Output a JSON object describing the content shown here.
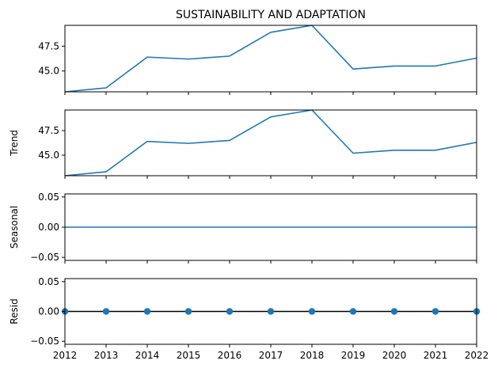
{
  "title": "SUSTAINABILITY AND ADAPTATION",
  "colors": {
    "line": "#1f77b4",
    "resid_marker": "#1f77b4",
    "zero_line": "#000000",
    "axis": "#000000"
  },
  "chart_data": [
    {
      "type": "line",
      "title": "SUSTAINABILITY AND ADAPTATION",
      "ylabel": "",
      "x": [
        2012,
        2013,
        2014,
        2015,
        2016,
        2017,
        2018,
        2019,
        2020,
        2021,
        2022
      ],
      "values": [
        42.9,
        43.3,
        46.4,
        46.2,
        46.5,
        48.9,
        49.6,
        45.2,
        45.5,
        45.5,
        46.3
      ],
      "ylim": [
        42.9,
        49.6
      ],
      "yticks": [
        45.0,
        47.5
      ],
      "ytick_labels": [
        "45.0",
        "47.5"
      ],
      "xtick_labels_visible": false
    },
    {
      "type": "line",
      "title": "",
      "ylabel": "Trend",
      "x": [
        2012,
        2013,
        2014,
        2015,
        2016,
        2017,
        2018,
        2019,
        2020,
        2021,
        2022
      ],
      "values": [
        42.9,
        43.3,
        46.4,
        46.2,
        46.5,
        48.9,
        49.6,
        45.2,
        45.5,
        45.5,
        46.3
      ],
      "ylim": [
        42.9,
        49.6
      ],
      "yticks": [
        45.0,
        47.5
      ],
      "ytick_labels": [
        "45.0",
        "47.5"
      ],
      "xtick_labels_visible": false
    },
    {
      "type": "line",
      "title": "",
      "ylabel": "Seasonal",
      "x": [
        2012,
        2013,
        2014,
        2015,
        2016,
        2017,
        2018,
        2019,
        2020,
        2021,
        2022
      ],
      "values": [
        0,
        0,
        0,
        0,
        0,
        0,
        0,
        0,
        0,
        0,
        0
      ],
      "ylim": [
        -0.055,
        0.055
      ],
      "yticks": [
        -0.05,
        0.0,
        0.05
      ],
      "ytick_labels": [
        "−0.05",
        "0.00",
        "0.05"
      ],
      "xtick_labels_visible": false
    },
    {
      "type": "scatter",
      "title": "",
      "ylabel": "Resid",
      "x": [
        2012,
        2013,
        2014,
        2015,
        2016,
        2017,
        2018,
        2019,
        2020,
        2021,
        2022
      ],
      "values": [
        0,
        0,
        0,
        0,
        0,
        0,
        0,
        0,
        0,
        0,
        0
      ],
      "ylim": [
        -0.055,
        0.055
      ],
      "yticks": [
        -0.05,
        0.0,
        0.05
      ],
      "ytick_labels": [
        "−0.05",
        "0.00",
        "0.05"
      ],
      "zero_line": true,
      "xtick_labels_visible": true
    }
  ],
  "xaxis": {
    "range": [
      2012,
      2022
    ],
    "ticks": [
      2012,
      2013,
      2014,
      2015,
      2016,
      2017,
      2018,
      2019,
      2020,
      2021,
      2022
    ],
    "tick_labels": [
      "2012",
      "2013",
      "2014",
      "2015",
      "2016",
      "2017",
      "2018",
      "2019",
      "2020",
      "2021",
      "2022"
    ]
  }
}
